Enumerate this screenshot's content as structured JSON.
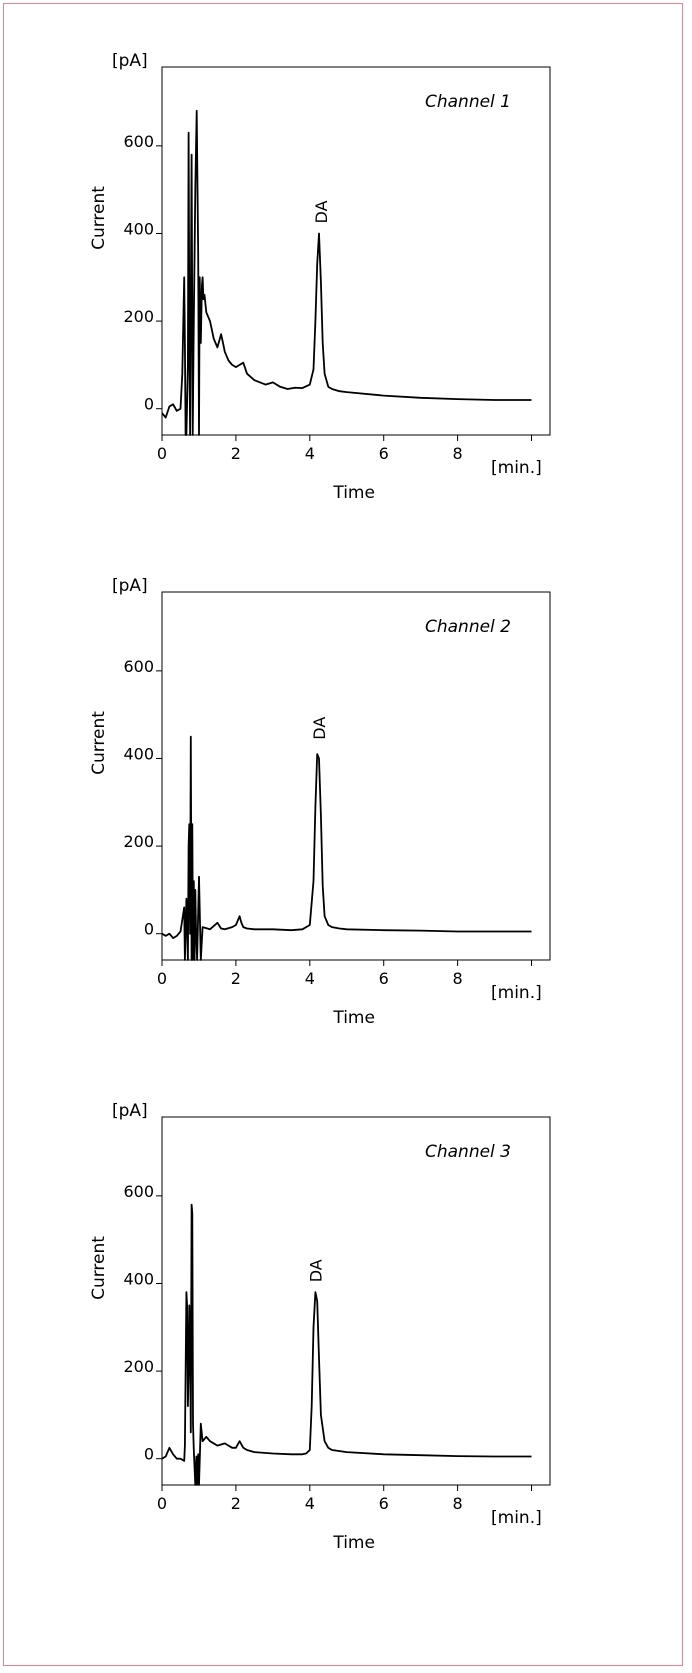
{
  "colors": {
    "frame_border": "#e8848f",
    "trace": "#000000",
    "background": "#ffffff"
  },
  "chart_data": [
    {
      "type": "line",
      "title": "Channel 1",
      "xlabel": "Time",
      "ylabel": "Current",
      "x_unit": "[min.]",
      "y_unit": "[pA]",
      "xlim": [
        0,
        10.5
      ],
      "ylim": [
        -60,
        780
      ],
      "x_ticks": [
        "0",
        "2",
        "4",
        "6",
        "8"
      ],
      "y_ticks": [
        "0",
        "200",
        "400",
        "600"
      ],
      "grid": false,
      "annotations": [
        {
          "text": "DA",
          "x": 4.3,
          "y": 400
        }
      ],
      "series": [
        {
          "x": [
            0,
            0.1,
            0.2,
            0.3,
            0.4,
            0.5,
            0.55,
            0.6,
            0.62,
            0.64,
            0.66,
            0.7,
            0.72,
            0.74,
            0.76,
            0.8,
            0.83,
            0.86,
            0.9,
            0.94,
            0.98,
            1.0,
            1.02,
            1.05,
            1.08,
            1.1,
            1.12,
            1.15,
            1.2,
            1.3,
            1.4,
            1.5,
            1.6,
            1.65,
            1.7,
            1.8,
            1.9,
            2.0,
            2.1,
            2.2,
            2.3,
            2.5,
            2.8,
            3.0,
            3.2,
            3.4,
            3.6,
            3.8,
            4.0,
            4.1,
            4.15,
            4.2,
            4.25,
            4.3,
            4.35,
            4.4,
            4.5,
            4.6,
            4.8,
            5.0,
            6.0,
            7.0,
            8.0,
            9.0,
            10.0
          ],
          "y": [
            -10,
            -20,
            5,
            10,
            -5,
            0,
            80,
            300,
            150,
            -60,
            -60,
            100,
            630,
            200,
            -60,
            580,
            -60,
            200,
            500,
            680,
            350,
            -60,
            300,
            150,
            280,
            300,
            250,
            260,
            220,
            200,
            160,
            140,
            170,
            150,
            130,
            110,
            100,
            95,
            100,
            105,
            80,
            65,
            55,
            60,
            50,
            45,
            48,
            47,
            55,
            90,
            200,
            330,
            400,
            290,
            150,
            80,
            50,
            45,
            40,
            38,
            30,
            25,
            22,
            20,
            20
          ]
        }
      ]
    },
    {
      "type": "line",
      "title": "Channel 2",
      "xlabel": "Time",
      "ylabel": "Current",
      "x_unit": "[min.]",
      "y_unit": "[pA]",
      "xlim": [
        0,
        10.5
      ],
      "ylim": [
        -60,
        780
      ],
      "x_ticks": [
        "0",
        "2",
        "4",
        "6",
        "8"
      ],
      "y_ticks": [
        "0",
        "200",
        "400",
        "600"
      ],
      "grid": false,
      "annotations": [
        {
          "text": "DA",
          "x": 4.25,
          "y": 420
        }
      ],
      "series": [
        {
          "x": [
            0,
            0.1,
            0.2,
            0.3,
            0.4,
            0.5,
            0.6,
            0.62,
            0.66,
            0.7,
            0.72,
            0.74,
            0.76,
            0.78,
            0.8,
            0.82,
            0.84,
            0.86,
            0.88,
            0.9,
            0.92,
            0.95,
            1.0,
            1.05,
            1.1,
            1.3,
            1.5,
            1.6,
            1.7,
            1.9,
            2.0,
            2.1,
            2.15,
            2.2,
            2.3,
            2.5,
            3.0,
            3.5,
            3.8,
            4.0,
            4.1,
            4.15,
            4.2,
            4.25,
            4.3,
            4.35,
            4.4,
            4.5,
            4.6,
            4.8,
            5.0,
            6.0,
            7.0,
            8.0,
            9.0,
            10.0
          ],
          "y": [
            0,
            -5,
            0,
            -10,
            -5,
            5,
            60,
            -60,
            80,
            -60,
            200,
            250,
            0,
            450,
            -60,
            250,
            -60,
            120,
            -60,
            100,
            10,
            -60,
            130,
            -60,
            15,
            10,
            25,
            12,
            10,
            15,
            20,
            40,
            25,
            15,
            12,
            10,
            10,
            8,
            10,
            20,
            120,
            290,
            410,
            400,
            270,
            110,
            40,
            20,
            15,
            12,
            10,
            8,
            7,
            5,
            5,
            5
          ]
        }
      ]
    },
    {
      "type": "line",
      "title": "Channel 3",
      "xlabel": "Time",
      "ylabel": "Current",
      "x_unit": "[min.]",
      "y_unit": "[pA]",
      "xlim": [
        0,
        10.5
      ],
      "ylim": [
        -60,
        780
      ],
      "x_ticks": [
        "0",
        "2",
        "4",
        "6",
        "8"
      ],
      "y_ticks": [
        "0",
        "200",
        "400",
        "600"
      ],
      "grid": false,
      "annotations": [
        {
          "text": "DA",
          "x": 4.15,
          "y": 380
        }
      ],
      "series": [
        {
          "x": [
            0,
            0.1,
            0.2,
            0.3,
            0.4,
            0.5,
            0.6,
            0.62,
            0.66,
            0.68,
            0.7,
            0.72,
            0.74,
            0.76,
            0.78,
            0.8,
            0.82,
            0.84,
            0.86,
            0.9,
            0.93,
            0.95,
            0.98,
            1.0,
            1.05,
            1.1,
            1.2,
            1.3,
            1.5,
            1.7,
            1.9,
            2.0,
            2.1,
            2.2,
            2.3,
            2.5,
            3.0,
            3.5,
            3.8,
            3.9,
            4.0,
            4.05,
            4.1,
            4.15,
            4.2,
            4.25,
            4.3,
            4.4,
            4.5,
            4.6,
            5.0,
            6.0,
            7.0,
            8.0,
            9.0,
            10.0
          ],
          "y": [
            0,
            5,
            25,
            10,
            0,
            0,
            -5,
            30,
            380,
            350,
            120,
            200,
            350,
            250,
            60,
            580,
            560,
            80,
            20,
            -60,
            5,
            -60,
            10,
            -60,
            80,
            40,
            50,
            40,
            30,
            35,
            25,
            25,
            40,
            25,
            20,
            15,
            12,
            10,
            10,
            12,
            20,
            120,
            300,
            380,
            360,
            230,
            100,
            40,
            25,
            20,
            15,
            10,
            8,
            6,
            5,
            5
          ]
        }
      ]
    }
  ]
}
